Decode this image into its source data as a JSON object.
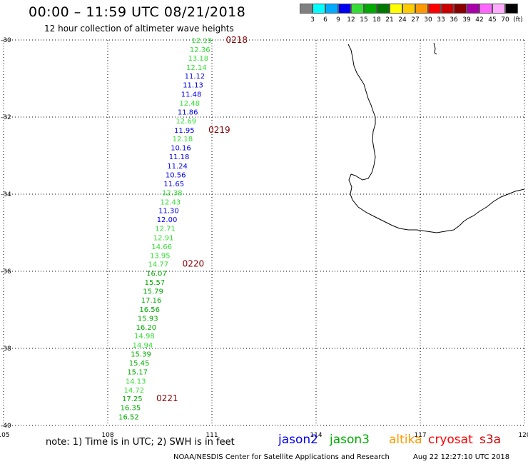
{
  "header": {
    "title": "00:00 – 11:59 UTC 08/21/2018",
    "subtitle": "12 hour collection of altimeter wave heights"
  },
  "scale": {
    "unit": "(ft)",
    "colors": [
      "#808080",
      "#00ffff",
      "#00aaff",
      "#0000ee",
      "#33dd33",
      "#00aa00",
      "#007700",
      "#ffff00",
      "#ffcc00",
      "#ff9900",
      "#ff0000",
      "#cc0000",
      "#880000",
      "#aa00aa",
      "#ff66ff",
      "#ffaaff",
      "#000000"
    ],
    "labels": [
      "3",
      "6",
      "9",
      "12",
      "15",
      "18",
      "21",
      "24",
      "27",
      "30",
      "33",
      "36",
      "39",
      "42",
      "45",
      "70"
    ]
  },
  "axes": {
    "lat_labels": [
      "-30",
      "-32",
      "-34",
      "-36",
      "-38",
      "-40"
    ],
    "lon_labels": [
      "105",
      "108",
      "111",
      "114",
      "117",
      "120"
    ]
  },
  "chart_data": {
    "type": "scatter",
    "x_label": "",
    "y_label": "",
    "xlim": [
      105,
      120
    ],
    "ylim": [
      -40,
      -30
    ],
    "points": [
      {
        "lat": -30.0,
        "lon": 111.0,
        "v": "12.19",
        "c": "#33dd33"
      },
      {
        "lat": -30.24,
        "lon": 110.95,
        "v": "12.36",
        "c": "#33dd33"
      },
      {
        "lat": -30.46,
        "lon": 110.9,
        "v": "13.18",
        "c": "#33dd33"
      },
      {
        "lat": -30.7,
        "lon": 110.85,
        "v": "12.14",
        "c": "#33dd33"
      },
      {
        "lat": -30.93,
        "lon": 110.8,
        "v": "11.12",
        "c": "#0000ee"
      },
      {
        "lat": -31.16,
        "lon": 110.75,
        "v": "11.13",
        "c": "#0000ee"
      },
      {
        "lat": -31.4,
        "lon": 110.7,
        "v": "11.48",
        "c": "#0000ee"
      },
      {
        "lat": -31.63,
        "lon": 110.65,
        "v": "12.48",
        "c": "#33dd33"
      },
      {
        "lat": -31.86,
        "lon": 110.6,
        "v": "11.86",
        "c": "#0000ee"
      },
      {
        "lat": -32.09,
        "lon": 110.55,
        "v": "12.69",
        "c": "#33dd33"
      },
      {
        "lat": -32.33,
        "lon": 110.5,
        "v": "11.95",
        "c": "#0000ee"
      },
      {
        "lat": -32.56,
        "lon": 110.45,
        "v": "12.18",
        "c": "#33dd33"
      },
      {
        "lat": -32.79,
        "lon": 110.4,
        "v": "10.16",
        "c": "#0000ee"
      },
      {
        "lat": -33.02,
        "lon": 110.35,
        "v": "11.18",
        "c": "#0000ee"
      },
      {
        "lat": -33.26,
        "lon": 110.3,
        "v": "11.24",
        "c": "#0000ee"
      },
      {
        "lat": -33.49,
        "lon": 110.25,
        "v": "10.56",
        "c": "#0000ee"
      },
      {
        "lat": -33.72,
        "lon": 110.2,
        "v": "11.65",
        "c": "#0000ee"
      },
      {
        "lat": -33.95,
        "lon": 110.15,
        "v": "12.38",
        "c": "#33dd33"
      },
      {
        "lat": -34.19,
        "lon": 110.1,
        "v": "12.43",
        "c": "#33dd33"
      },
      {
        "lat": -34.42,
        "lon": 110.05,
        "v": "11.30",
        "c": "#0000ee"
      },
      {
        "lat": -34.65,
        "lon": 110.0,
        "v": "12.00",
        "c": "#0000ee"
      },
      {
        "lat": -34.88,
        "lon": 109.95,
        "v": "12.71",
        "c": "#33dd33"
      },
      {
        "lat": -35.12,
        "lon": 109.9,
        "v": "12.91",
        "c": "#33dd33"
      },
      {
        "lat": -35.35,
        "lon": 109.85,
        "v": "14.66",
        "c": "#33dd33"
      },
      {
        "lat": -35.58,
        "lon": 109.8,
        "v": "13.95",
        "c": "#33dd33"
      },
      {
        "lat": -35.81,
        "lon": 109.75,
        "v": "14.77",
        "c": "#33dd33"
      },
      {
        "lat": -36.05,
        "lon": 109.7,
        "v": "16.07",
        "c": "#00aa00"
      },
      {
        "lat": -36.28,
        "lon": 109.65,
        "v": "15.57",
        "c": "#00aa00"
      },
      {
        "lat": -36.51,
        "lon": 109.6,
        "v": "15.79",
        "c": "#00aa00"
      },
      {
        "lat": -36.74,
        "lon": 109.55,
        "v": "17.16",
        "c": "#00aa00"
      },
      {
        "lat": -36.98,
        "lon": 109.5,
        "v": "16.56",
        "c": "#00aa00"
      },
      {
        "lat": -37.21,
        "lon": 109.45,
        "v": "15.93",
        "c": "#00aa00"
      },
      {
        "lat": -37.44,
        "lon": 109.4,
        "v": "16.20",
        "c": "#00aa00"
      },
      {
        "lat": -37.67,
        "lon": 109.35,
        "v": "14.98",
        "c": "#33dd33"
      },
      {
        "lat": -37.91,
        "lon": 109.3,
        "v": "14.94",
        "c": "#33dd33"
      },
      {
        "lat": -38.14,
        "lon": 109.25,
        "v": "15.39",
        "c": "#00aa00"
      },
      {
        "lat": -38.37,
        "lon": 109.2,
        "v": "15.45",
        "c": "#00aa00"
      },
      {
        "lat": -38.6,
        "lon": 109.15,
        "v": "15.17",
        "c": "#00aa00"
      },
      {
        "lat": -38.84,
        "lon": 109.1,
        "v": "14.13",
        "c": "#33dd33"
      },
      {
        "lat": -39.07,
        "lon": 109.05,
        "v": "14.72",
        "c": "#33dd33"
      },
      {
        "lat": -39.3,
        "lon": 109.0,
        "v": "17.25",
        "c": "#00aa00"
      },
      {
        "lat": -39.53,
        "lon": 108.95,
        "v": "16.35",
        "c": "#00aa00"
      },
      {
        "lat": -39.77,
        "lon": 108.9,
        "v": "16.52",
        "c": "#00aa00"
      }
    ],
    "time_labels": [
      {
        "lat": -30.0,
        "lon": 111.4,
        "t": "0218"
      },
      {
        "lat": -32.33,
        "lon": 110.9,
        "t": "0219"
      },
      {
        "lat": -35.81,
        "lon": 110.15,
        "t": "0220"
      },
      {
        "lat": -39.3,
        "lon": 109.4,
        "t": "0221"
      }
    ]
  },
  "footer": {
    "note": "note: 1) Time is in UTC; 2) SWH is in feet",
    "satellites": [
      {
        "name": "jason2",
        "color": "#0000ee"
      },
      {
        "name": "jason3",
        "color": "#00aa00"
      },
      {
        "name": "altika",
        "color": "#ff9900"
      },
      {
        "name": "cryosat",
        "color": "#ff0000"
      },
      {
        "name": "s3a",
        "color": "#cc0000"
      }
    ],
    "credit": "NOAA/NESDIS Center for Satellite Applications and Research",
    "stamp": "Aug 22 12:27:10 UTC 2018"
  }
}
